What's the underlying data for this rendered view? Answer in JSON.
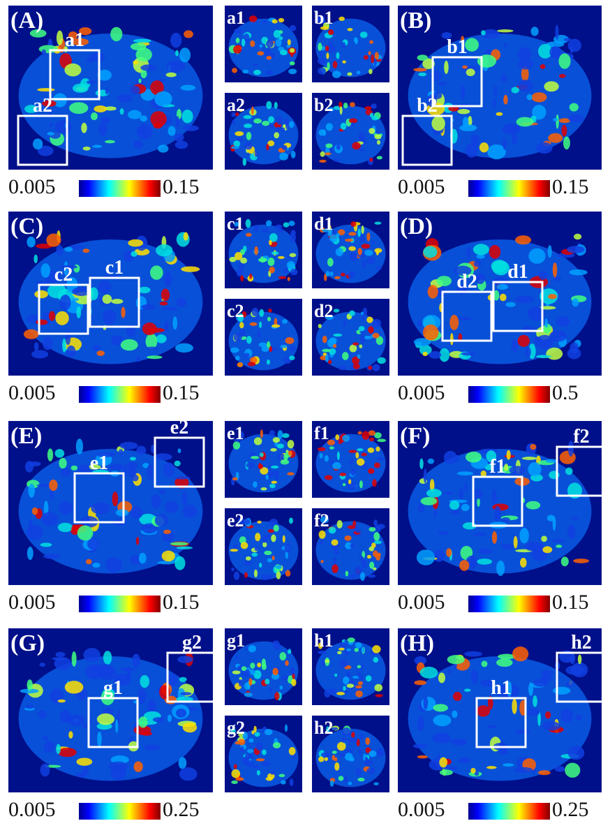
{
  "rows": [
    {
      "left": {
        "label": "(A)",
        "boxes": [
          "a1",
          "a2"
        ],
        "colorbar": {
          "min": 0.005,
          "max": 0.15
        }
      },
      "insets": [
        "a1",
        "b1",
        "a2",
        "b2"
      ],
      "right": {
        "label": "(B)",
        "boxes": [
          "b1",
          "b2"
        ],
        "colorbar": {
          "min": 0.005,
          "max": 0.15
        }
      }
    },
    {
      "left": {
        "label": "(C)",
        "boxes": [
          "c2",
          "c1"
        ],
        "colorbar": {
          "min": 0.005,
          "max": 0.15
        }
      },
      "insets": [
        "c1",
        "d1",
        "c2",
        "d2"
      ],
      "right": {
        "label": "(D)",
        "boxes": [
          "d2",
          "d1"
        ],
        "colorbar": {
          "min": 0.005,
          "max": 0.5
        }
      }
    },
    {
      "left": {
        "label": "(E)",
        "boxes": [
          "e1",
          "e2"
        ],
        "colorbar": {
          "min": 0.005,
          "max": 0.15
        }
      },
      "insets": [
        "e1",
        "f1",
        "e2",
        "f2"
      ],
      "right": {
        "label": "(F)",
        "boxes": [
          "f1",
          "f2"
        ],
        "colorbar": {
          "min": 0.005,
          "max": 0.15
        }
      }
    },
    {
      "left": {
        "label": "(G)",
        "boxes": [
          "g1",
          "g2"
        ],
        "colorbar": {
          "min": 0.005,
          "max": 0.25
        }
      },
      "insets": [
        "g1",
        "h1",
        "g2",
        "h2"
      ],
      "right": {
        "label": "(H)",
        "boxes": [
          "h1",
          "h2"
        ],
        "colorbar": {
          "min": 0.005,
          "max": 0.25
        }
      }
    }
  ]
}
